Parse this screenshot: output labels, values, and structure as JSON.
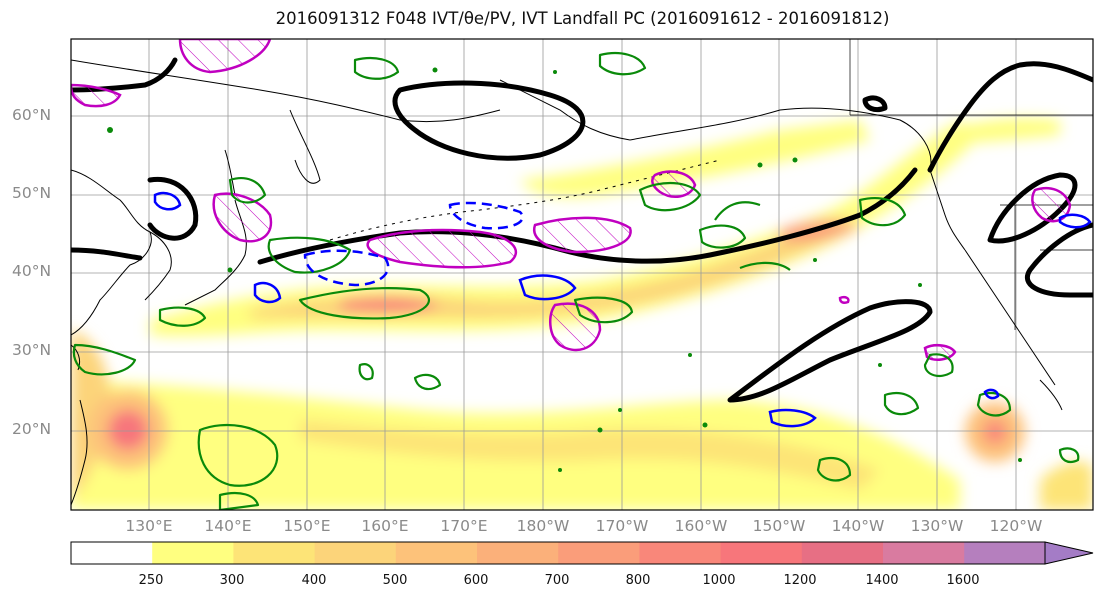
{
  "title": "2016091312 F048 IVT/θe/PV, IVT Landfall PC (2016091612 - 2016091812)",
  "lat_labels": [
    "60°N",
    "50°N",
    "40°N",
    "30°N",
    "20°N"
  ],
  "lon_labels": [
    "130°E",
    "140°E",
    "150°E",
    "160°E",
    "170°E",
    "180°W",
    "170°W",
    "160°W",
    "150°W",
    "140°W",
    "130°W",
    "120°W"
  ],
  "colorbar": {
    "ticks": [
      "250",
      "300",
      "400",
      "500",
      "600",
      "700",
      "800",
      "1000",
      "1200",
      "1400",
      "1600"
    ],
    "colors": [
      "#ffff80",
      "#fde477",
      "#fcd47a",
      "#fdc27a",
      "#fbb07a",
      "#fa9d7a",
      "#f9877a",
      "#f7767b",
      "#e76f84",
      "#d97ba0",
      "#b57fbe",
      "#a47cc6"
    ],
    "extend": "max"
  },
  "contour_colors": {
    "black": "#000000",
    "green": "#0a8a0a",
    "blue": "#0000ff",
    "magenta": "#c000c0"
  }
}
